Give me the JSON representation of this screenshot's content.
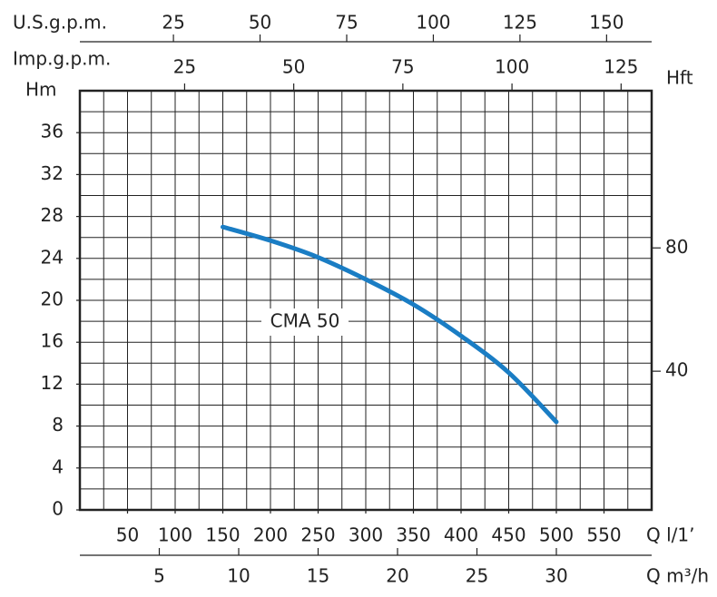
{
  "chart_data": {
    "type": "line",
    "x_label": "Q l/1’",
    "xlim": [
      0,
      600
    ],
    "xticks": [
      50,
      100,
      150,
      200,
      250,
      300,
      350,
      400,
      450,
      500,
      550
    ],
    "y_label": "Hm",
    "ylim": [
      0,
      40
    ],
    "yticks": [
      0,
      4,
      8,
      12,
      16,
      20,
      24,
      28,
      32,
      36
    ],
    "y2_label": "Hft",
    "y2lim": [
      -5,
      131
    ],
    "y2ticks": [
      40,
      80
    ],
    "top_axes": [
      {
        "label": "U.S.g.p.m.",
        "xlim": [
          -2,
          163
        ],
        "xticks": [
          25,
          50,
          75,
          100,
          125,
          150
        ]
      },
      {
        "label": "Imp.g.p.m.",
        "xlim": [
          1,
          132
        ],
        "xticks": [
          25,
          50,
          75,
          100,
          125
        ]
      }
    ],
    "bottom_axis2": {
      "label": "Q m³/h",
      "xlim": [
        0,
        36
      ],
      "xticks": [
        5,
        10,
        15,
        20,
        25,
        30
      ]
    },
    "grid": true,
    "x": [
      150,
      200,
      250,
      300,
      350,
      400,
      450,
      500
    ],
    "series": [
      {
        "name": "CMA 50",
        "color": "#1a7dc4",
        "values": [
          27.0,
          25.7,
          24.1,
          22.0,
          19.6,
          16.6,
          13.1,
          8.4
        ]
      }
    ]
  }
}
